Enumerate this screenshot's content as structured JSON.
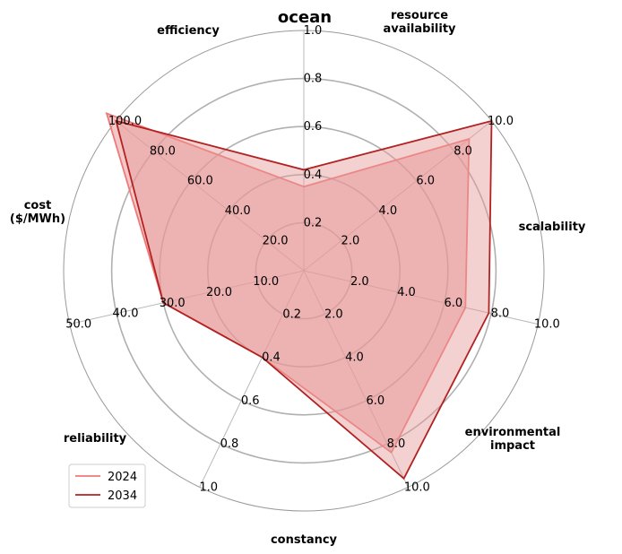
{
  "chart_data": {
    "type": "radar",
    "title": "ocean",
    "axes": [
      {
        "name": "efficiency",
        "label": "efficiency",
        "range": [
          0,
          1.0
        ],
        "ticks": [
          "0.2",
          "0.4",
          "0.6",
          "0.8",
          "1.0"
        ]
      },
      {
        "name": "resource availability",
        "label": "resource\navailability",
        "range": [
          0,
          10.0
        ],
        "ticks": [
          "2.0",
          "4.0",
          "6.0",
          "8.0",
          "10.0"
        ]
      },
      {
        "name": "scalability",
        "label": "scalability",
        "range": [
          0,
          10.0
        ],
        "ticks": [
          "2.0",
          "4.0",
          "6.0",
          "8.0",
          "10.0"
        ]
      },
      {
        "name": "environmental impact",
        "label": "environmental\nimpact",
        "range": [
          0,
          10.0
        ],
        "ticks": [
          "2.0",
          "4.0",
          "6.0",
          "8.0",
          "10.0"
        ]
      },
      {
        "name": "constancy",
        "label": "constancy",
        "range": [
          0,
          1.0
        ],
        "ticks": [
          "0.2",
          "0.4",
          "0.6",
          "0.8",
          "1.0"
        ]
      },
      {
        "name": "reliability",
        "label": "reliability",
        "range": [
          0,
          50.0
        ],
        "ticks": [
          "10.0",
          "20.0",
          "30.0",
          "40.0",
          "50.0"
        ]
      },
      {
        "name": "cost ($/MWh)",
        "label": "cost\n($/MWh)",
        "range": [
          0,
          100.0
        ],
        "ticks": [
          "20.0",
          "40.0",
          "60.0",
          "80.0",
          "100.0"
        ]
      }
    ],
    "series": [
      {
        "name": "2024",
        "color": "#f07878",
        "values": [
          0.35,
          8.8,
          6.9,
          8.4,
          0.4,
          30,
          105
        ]
      },
      {
        "name": "2034",
        "color": "#b22222",
        "values": [
          0.42,
          10.0,
          7.9,
          9.6,
          0.4,
          30,
          100
        ]
      }
    ],
    "fill_color": "#e79a9a",
    "grid": true,
    "legend": "lower-left"
  }
}
